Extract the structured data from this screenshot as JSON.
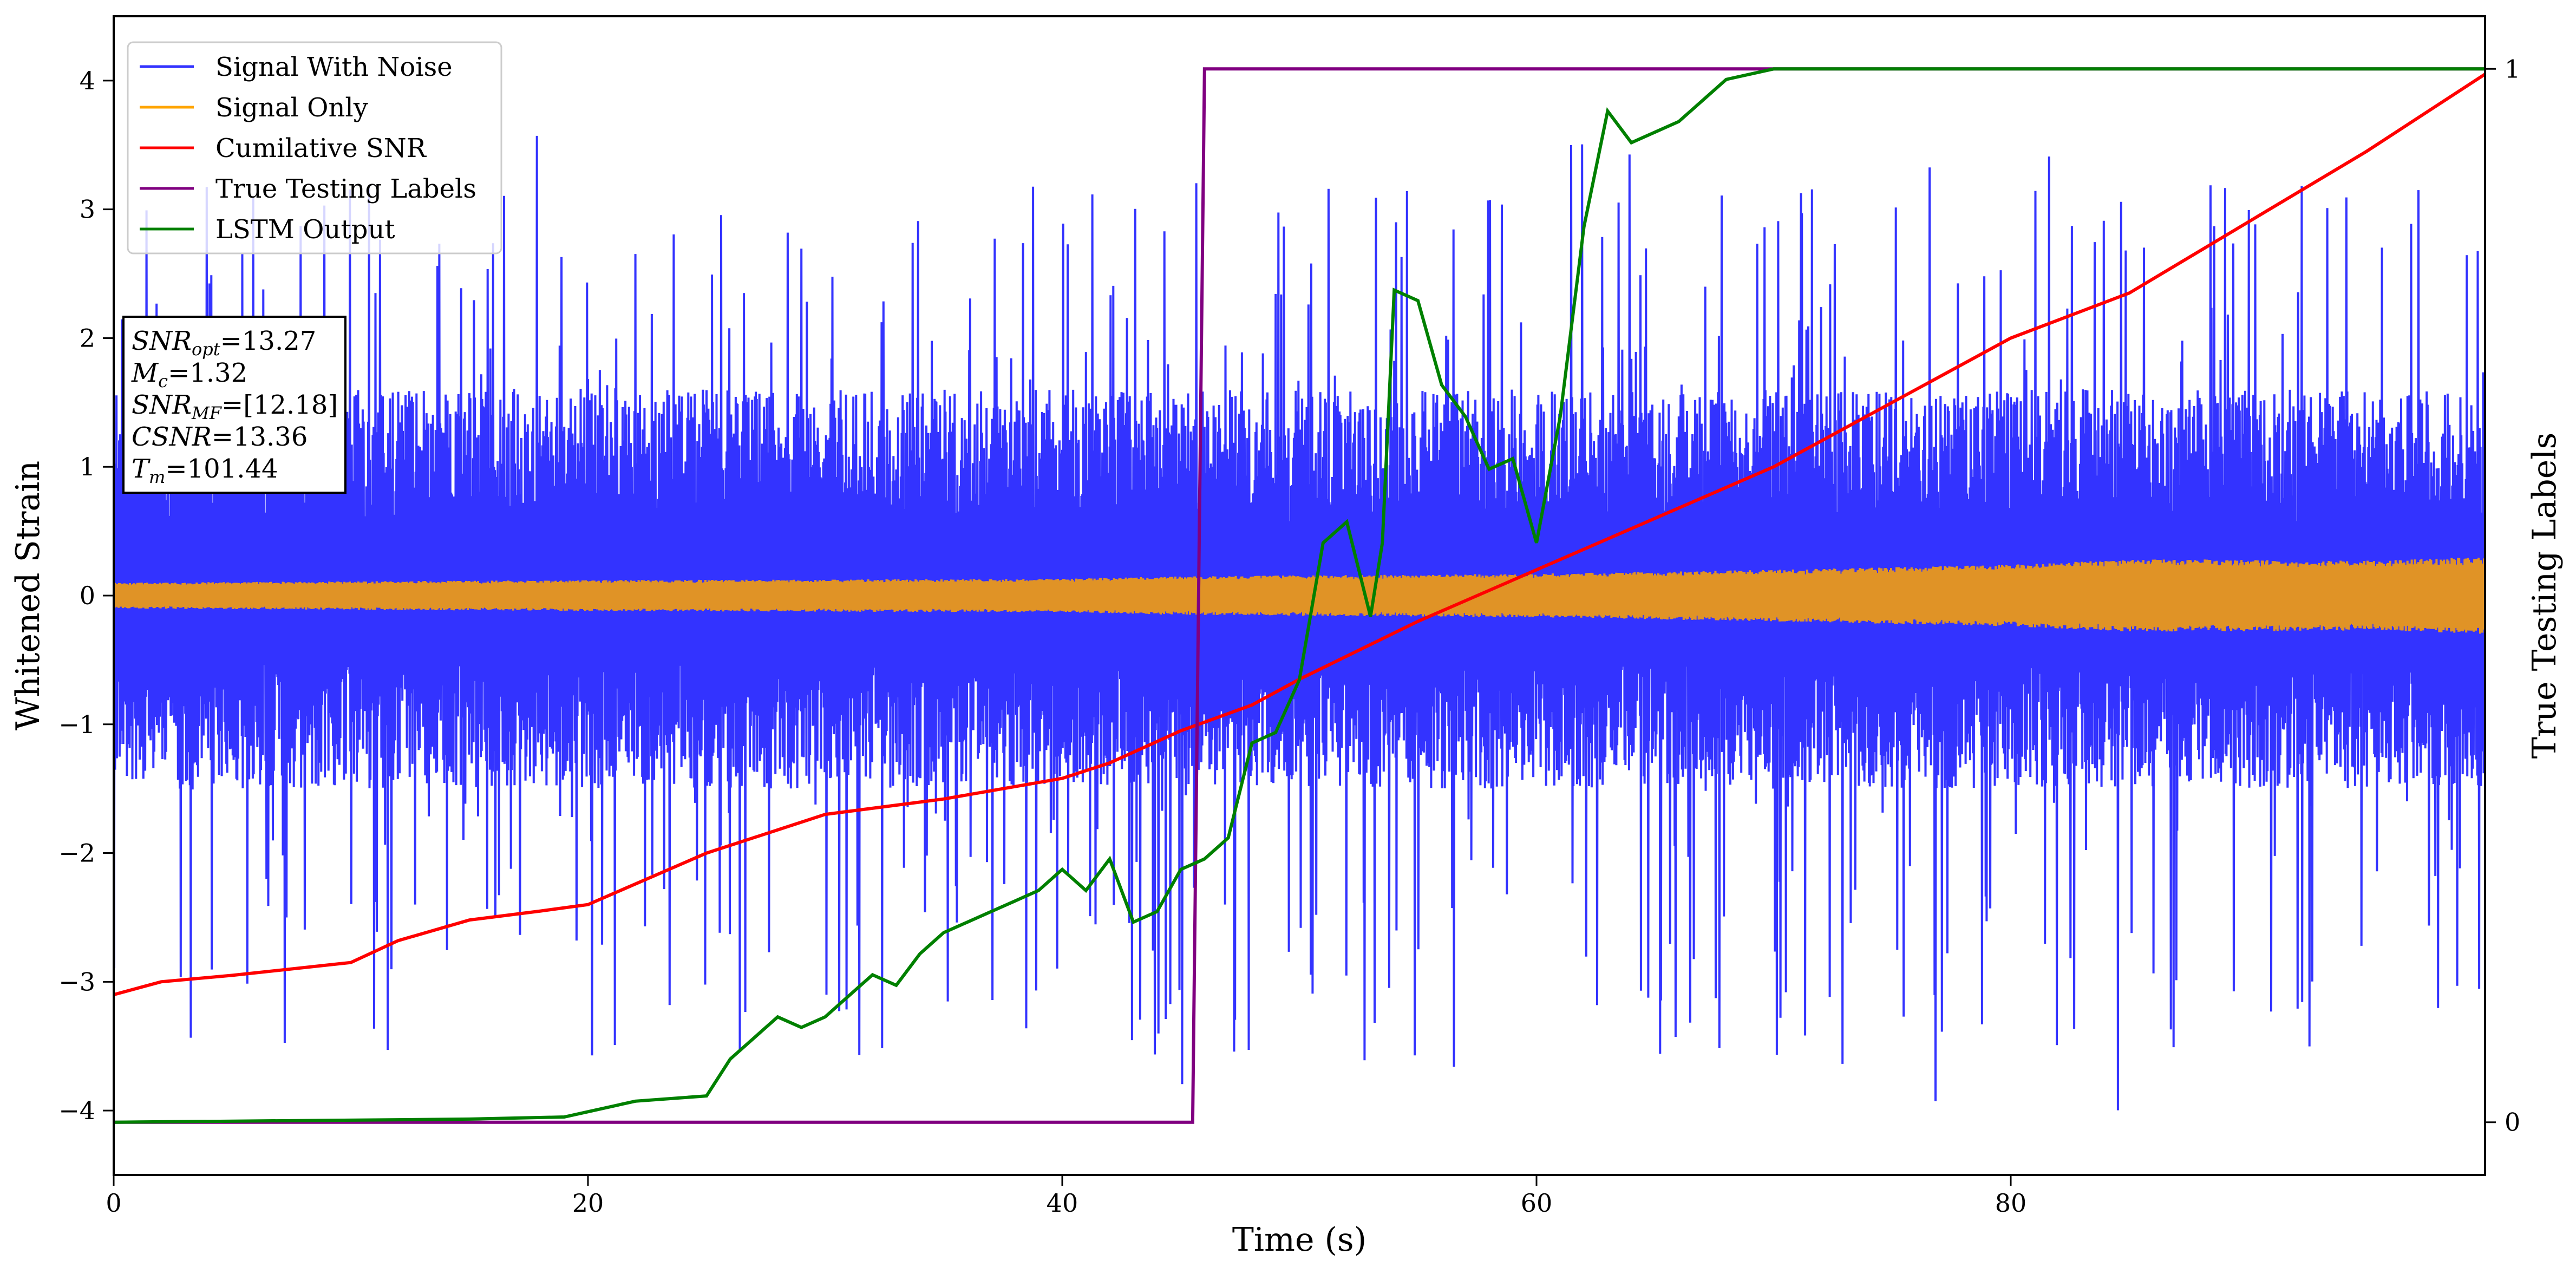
{
  "chart_data": {
    "type": "line",
    "xlabel": "Time (s)",
    "ylabel": "Whitened Strain",
    "ylabel_right": "True Testing Labels",
    "xlim": [
      0,
      100
    ],
    "ylim": [
      -4.5,
      4.5
    ],
    "ylim_right": [
      -0.05,
      1.05
    ],
    "x_ticks": [
      "0",
      "20",
      "40",
      "60",
      "80"
    ],
    "y_ticks": [
      "−4",
      "−3",
      "−2",
      "−1",
      "0",
      "1",
      "2",
      "3",
      "4"
    ],
    "y_right_ticks": [
      "0",
      "1"
    ],
    "grid": false,
    "legend_position": "top-left",
    "legend": [
      {
        "label": "Signal With Noise",
        "color": "#3333ff"
      },
      {
        "label": "Signal Only",
        "color": "#ffa500"
      },
      {
        "label": "Cumilative SNR",
        "color": "#ff0000"
      },
      {
        "label": "True Testing Labels",
        "color": "#800080"
      },
      {
        "label": "LSTM Output",
        "color": "#008000"
      }
    ],
    "info_box": {
      "line1": {
        "sym": "SNR",
        "sub": "opt",
        "val": "=13.27"
      },
      "line2": {
        "sym": "M",
        "sub": "c",
        "val": "=1.32"
      },
      "line3": {
        "sym": "SNR",
        "sub": "MF",
        "val": "=[12.18]"
      },
      "line4": {
        "sym": "CSNR",
        "sub": "",
        "val": "=13.36"
      },
      "line5": {
        "sym": "T",
        "sub": "m",
        "val": "=101.44"
      }
    },
    "series": [
      {
        "name": "Signal With Noise",
        "color": "#3333ff",
        "axis": "left",
        "style": "dense noise band",
        "typical_range": [
          -1.5,
          1.6
        ],
        "extreme_range": [
          -4.1,
          3.6
        ]
      },
      {
        "name": "Signal Only",
        "color": "#ffa500",
        "axis": "left",
        "style": "oscillating band",
        "envelope": {
          "x": [
            0,
            20,
            40,
            45,
            60,
            70,
            80,
            85,
            90,
            95,
            100
          ],
          "amp": [
            0.1,
            0.12,
            0.13,
            0.15,
            0.17,
            0.2,
            0.24,
            0.28,
            0.28,
            0.27,
            0.3
          ]
        }
      },
      {
        "name": "Cumilative SNR",
        "color": "#ff0000",
        "axis": "left",
        "x": [
          0,
          2,
          5,
          10,
          12,
          15,
          18,
          20,
          25,
          30,
          35,
          40,
          42,
          45,
          48,
          50,
          55,
          60,
          65,
          70,
          75,
          80,
          85,
          90,
          95,
          100
        ],
        "y": [
          -3.1,
          -3.0,
          -2.95,
          -2.85,
          -2.68,
          -2.52,
          -2.45,
          -2.4,
          -2.0,
          -1.7,
          -1.58,
          -1.42,
          -1.3,
          -1.05,
          -0.85,
          -0.65,
          -0.2,
          0.2,
          0.6,
          1.0,
          1.5,
          2.0,
          2.35,
          2.9,
          3.45,
          4.05
        ]
      },
      {
        "name": "True Testing Labels",
        "color": "#800080",
        "axis": "right",
        "x": [
          0,
          45.5,
          46.0,
          100
        ],
        "y": [
          0,
          0,
          1,
          1
        ]
      },
      {
        "name": "LSTM Output",
        "color": "#008000",
        "axis": "right",
        "x": [
          0,
          15,
          19,
          20,
          22,
          25,
          26,
          27,
          28,
          29,
          30,
          31,
          32,
          33,
          34,
          35,
          36,
          37,
          38,
          39,
          40,
          41,
          42,
          43,
          44,
          45,
          46,
          47,
          48,
          49,
          50,
          51,
          52,
          53,
          53.5,
          54,
          55,
          56,
          57,
          58,
          59,
          60,
          61,
          62,
          63,
          64,
          65,
          66,
          67,
          68,
          70,
          73,
          80,
          90,
          100
        ],
        "y": [
          0,
          0.003,
          0.005,
          0.01,
          0.02,
          0.025,
          0.06,
          0.08,
          0.1,
          0.09,
          0.1,
          0.12,
          0.14,
          0.13,
          0.16,
          0.18,
          0.19,
          0.2,
          0.21,
          0.22,
          0.24,
          0.22,
          0.25,
          0.19,
          0.2,
          0.24,
          0.25,
          0.27,
          0.36,
          0.37,
          0.42,
          0.55,
          0.57,
          0.48,
          0.55,
          0.79,
          0.78,
          0.7,
          0.67,
          0.62,
          0.63,
          0.55,
          0.67,
          0.85,
          0.96,
          0.93,
          0.94,
          0.95,
          0.97,
          0.99,
          1.0,
          1.0,
          1.0,
          1.0,
          1.0
        ]
      }
    ]
  }
}
